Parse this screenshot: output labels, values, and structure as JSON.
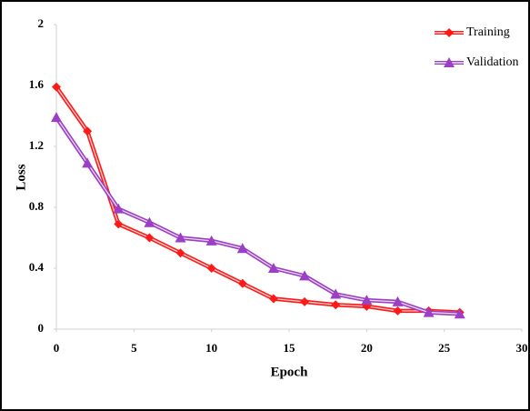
{
  "chart_data": {
    "type": "line",
    "x_label": "Epoch",
    "y_label": "Loss",
    "x": [
      0,
      2,
      4,
      6,
      8,
      10,
      12,
      14,
      16,
      18,
      20,
      22,
      24,
      26
    ],
    "series": [
      {
        "name": "Training",
        "color": "#ff1a1a",
        "marker": "diamond",
        "values": [
          1.59,
          1.3,
          0.69,
          0.6,
          0.5,
          0.4,
          0.3,
          0.2,
          0.18,
          0.16,
          0.15,
          0.12,
          0.12,
          0.11
        ]
      },
      {
        "name": "Validation",
        "color": "#9b3fc4",
        "marker": "triangle",
        "values": [
          1.39,
          1.09,
          0.79,
          0.7,
          0.6,
          0.58,
          0.53,
          0.4,
          0.35,
          0.23,
          0.19,
          0.18,
          0.11,
          0.1
        ]
      }
    ],
    "xlim": [
      0,
      30
    ],
    "xticks": [
      0,
      5,
      10,
      15,
      20,
      25,
      30
    ],
    "ylim": [
      0,
      2
    ],
    "yticks": [
      0,
      0.4,
      0.8,
      1.2,
      1.6,
      2
    ],
    "legend": "top-right"
  }
}
